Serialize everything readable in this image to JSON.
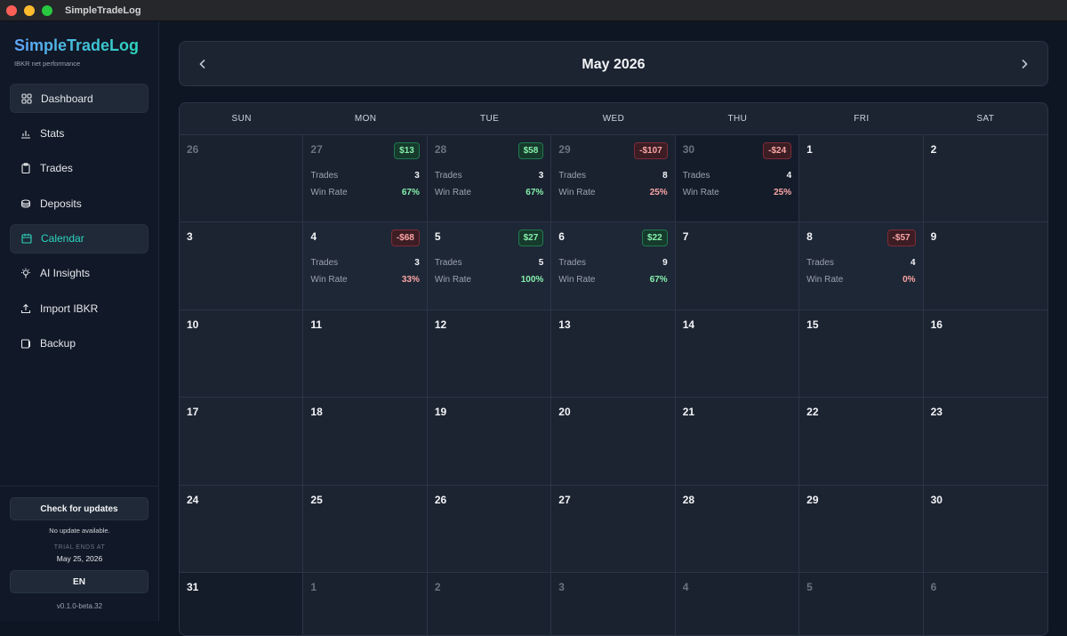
{
  "window": {
    "title": "SimpleTradeLog"
  },
  "sidebar": {
    "brand": "SimpleTradeLog",
    "subtitle": "IBKR net performance",
    "items": [
      {
        "label": "Dashboard",
        "icon": "grid-icon"
      },
      {
        "label": "Stats",
        "icon": "bar-chart-icon"
      },
      {
        "label": "Trades",
        "icon": "clipboard-icon"
      },
      {
        "label": "Deposits",
        "icon": "coins-icon"
      },
      {
        "label": "Calendar",
        "icon": "calendar-icon"
      },
      {
        "label": "AI Insights",
        "icon": "lightbulb-icon"
      },
      {
        "label": "Import IBKR",
        "icon": "upload-icon"
      },
      {
        "label": "Backup",
        "icon": "backup-icon"
      }
    ],
    "active": "Calendar",
    "check_updates_label": "Check for updates",
    "update_status": "No update available.",
    "trial_label": "TRIAL ENDS AT",
    "trial_date": "May 25, 2026",
    "language_label": "EN",
    "version": "v0.1.0-beta.32"
  },
  "calendar": {
    "month_title": "May 2026",
    "weekdays": [
      "SUN",
      "MON",
      "TUE",
      "WED",
      "THU",
      "FRI",
      "SAT"
    ],
    "trades_label": "Trades",
    "win_rate_label": "Win Rate",
    "days": [
      {
        "day": "26",
        "other": true
      },
      {
        "day": "27",
        "other": true,
        "pnl": "$13",
        "trades": "3",
        "win_rate": "67%"
      },
      {
        "day": "28",
        "other": true,
        "pnl": "$58",
        "trades": "3",
        "win_rate": "67%"
      },
      {
        "day": "29",
        "other": true,
        "pnl": "-$107",
        "trades": "8",
        "win_rate": "25%"
      },
      {
        "day": "30",
        "other": true,
        "pnl": "-$24",
        "trades": "4",
        "win_rate": "25%"
      },
      {
        "day": "1"
      },
      {
        "day": "2"
      },
      {
        "day": "3"
      },
      {
        "day": "4",
        "pnl": "-$68",
        "trades": "3",
        "win_rate": "33%"
      },
      {
        "day": "5",
        "pnl": "$27",
        "trades": "5",
        "win_rate": "100%"
      },
      {
        "day": "6",
        "pnl": "$22",
        "trades": "9",
        "win_rate": "67%"
      },
      {
        "day": "7"
      },
      {
        "day": "8",
        "pnl": "-$57",
        "trades": "4",
        "win_rate": "0%"
      },
      {
        "day": "9"
      },
      {
        "day": "10"
      },
      {
        "day": "11"
      },
      {
        "day": "12"
      },
      {
        "day": "13"
      },
      {
        "day": "14"
      },
      {
        "day": "15"
      },
      {
        "day": "16"
      },
      {
        "day": "17"
      },
      {
        "day": "18"
      },
      {
        "day": "19"
      },
      {
        "day": "20"
      },
      {
        "day": "21"
      },
      {
        "day": "22"
      },
      {
        "day": "23"
      },
      {
        "day": "24"
      },
      {
        "day": "25"
      },
      {
        "day": "26"
      },
      {
        "day": "27"
      },
      {
        "day": "28"
      },
      {
        "day": "29"
      },
      {
        "day": "30"
      },
      {
        "day": "31"
      },
      {
        "day": "1",
        "other": true
      },
      {
        "day": "2",
        "other": true
      },
      {
        "day": "3",
        "other": true
      },
      {
        "day": "4",
        "other": true
      },
      {
        "day": "5",
        "other": true
      },
      {
        "day": "6",
        "other": true
      }
    ]
  },
  "colors": {
    "accent": "#2dd4bf",
    "positive": "#86efac",
    "negative": "#fca5a5",
    "background": "#0f1623"
  }
}
